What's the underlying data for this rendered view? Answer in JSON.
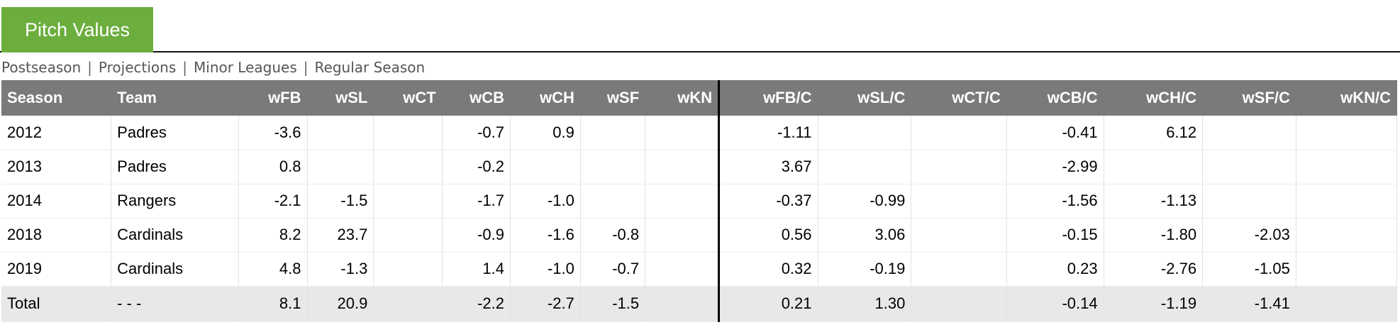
{
  "section": {
    "title": "Pitch Values"
  },
  "subnav": {
    "items": [
      "Postseason",
      "Projections",
      "Minor Leagues",
      "Regular Season"
    ],
    "separator": "|"
  },
  "table": {
    "columns": [
      "Season",
      "Team",
      "wFB",
      "wSL",
      "wCT",
      "wCB",
      "wCH",
      "wSF",
      "wKN",
      "wFB/C",
      "wSL/C",
      "wCT/C",
      "wCB/C",
      "wCH/C",
      "wSF/C",
      "wKN/C"
    ],
    "rows": [
      [
        "2012",
        "Padres",
        "-3.6",
        "",
        "",
        "-0.7",
        "0.9",
        "",
        "",
        "-1.11",
        "",
        "",
        "-0.41",
        "6.12",
        "",
        ""
      ],
      [
        "2013",
        "Padres",
        "0.8",
        "",
        "",
        "-0.2",
        "",
        "",
        "",
        "3.67",
        "",
        "",
        "-2.99",
        "",
        "",
        ""
      ],
      [
        "2014",
        "Rangers",
        "-2.1",
        "-1.5",
        "",
        "-1.7",
        "-1.0",
        "",
        "",
        "-0.37",
        "-0.99",
        "",
        "-1.56",
        "-1.13",
        "",
        ""
      ],
      [
        "2018",
        "Cardinals",
        "8.2",
        "23.7",
        "",
        "-0.9",
        "-1.6",
        "-0.8",
        "",
        "0.56",
        "3.06",
        "",
        "-0.15",
        "-1.80",
        "-2.03",
        ""
      ],
      [
        "2019",
        "Cardinals",
        "4.8",
        "-1.3",
        "",
        "1.4",
        "-1.0",
        "-0.7",
        "",
        "0.32",
        "-0.19",
        "",
        "0.23",
        "-2.76",
        "-1.05",
        ""
      ]
    ],
    "total": [
      "Total",
      "- - -",
      "8.1",
      "20.9",
      "",
      "-2.2",
      "-2.7",
      "-1.5",
      "",
      "0.21",
      "1.30",
      "",
      "-0.14",
      "-1.19",
      "-1.41",
      ""
    ]
  },
  "colors": {
    "tab_bg": "#6cae3e",
    "header_bg": "#7a7a7a",
    "total_bg": "#e8e8e8"
  }
}
